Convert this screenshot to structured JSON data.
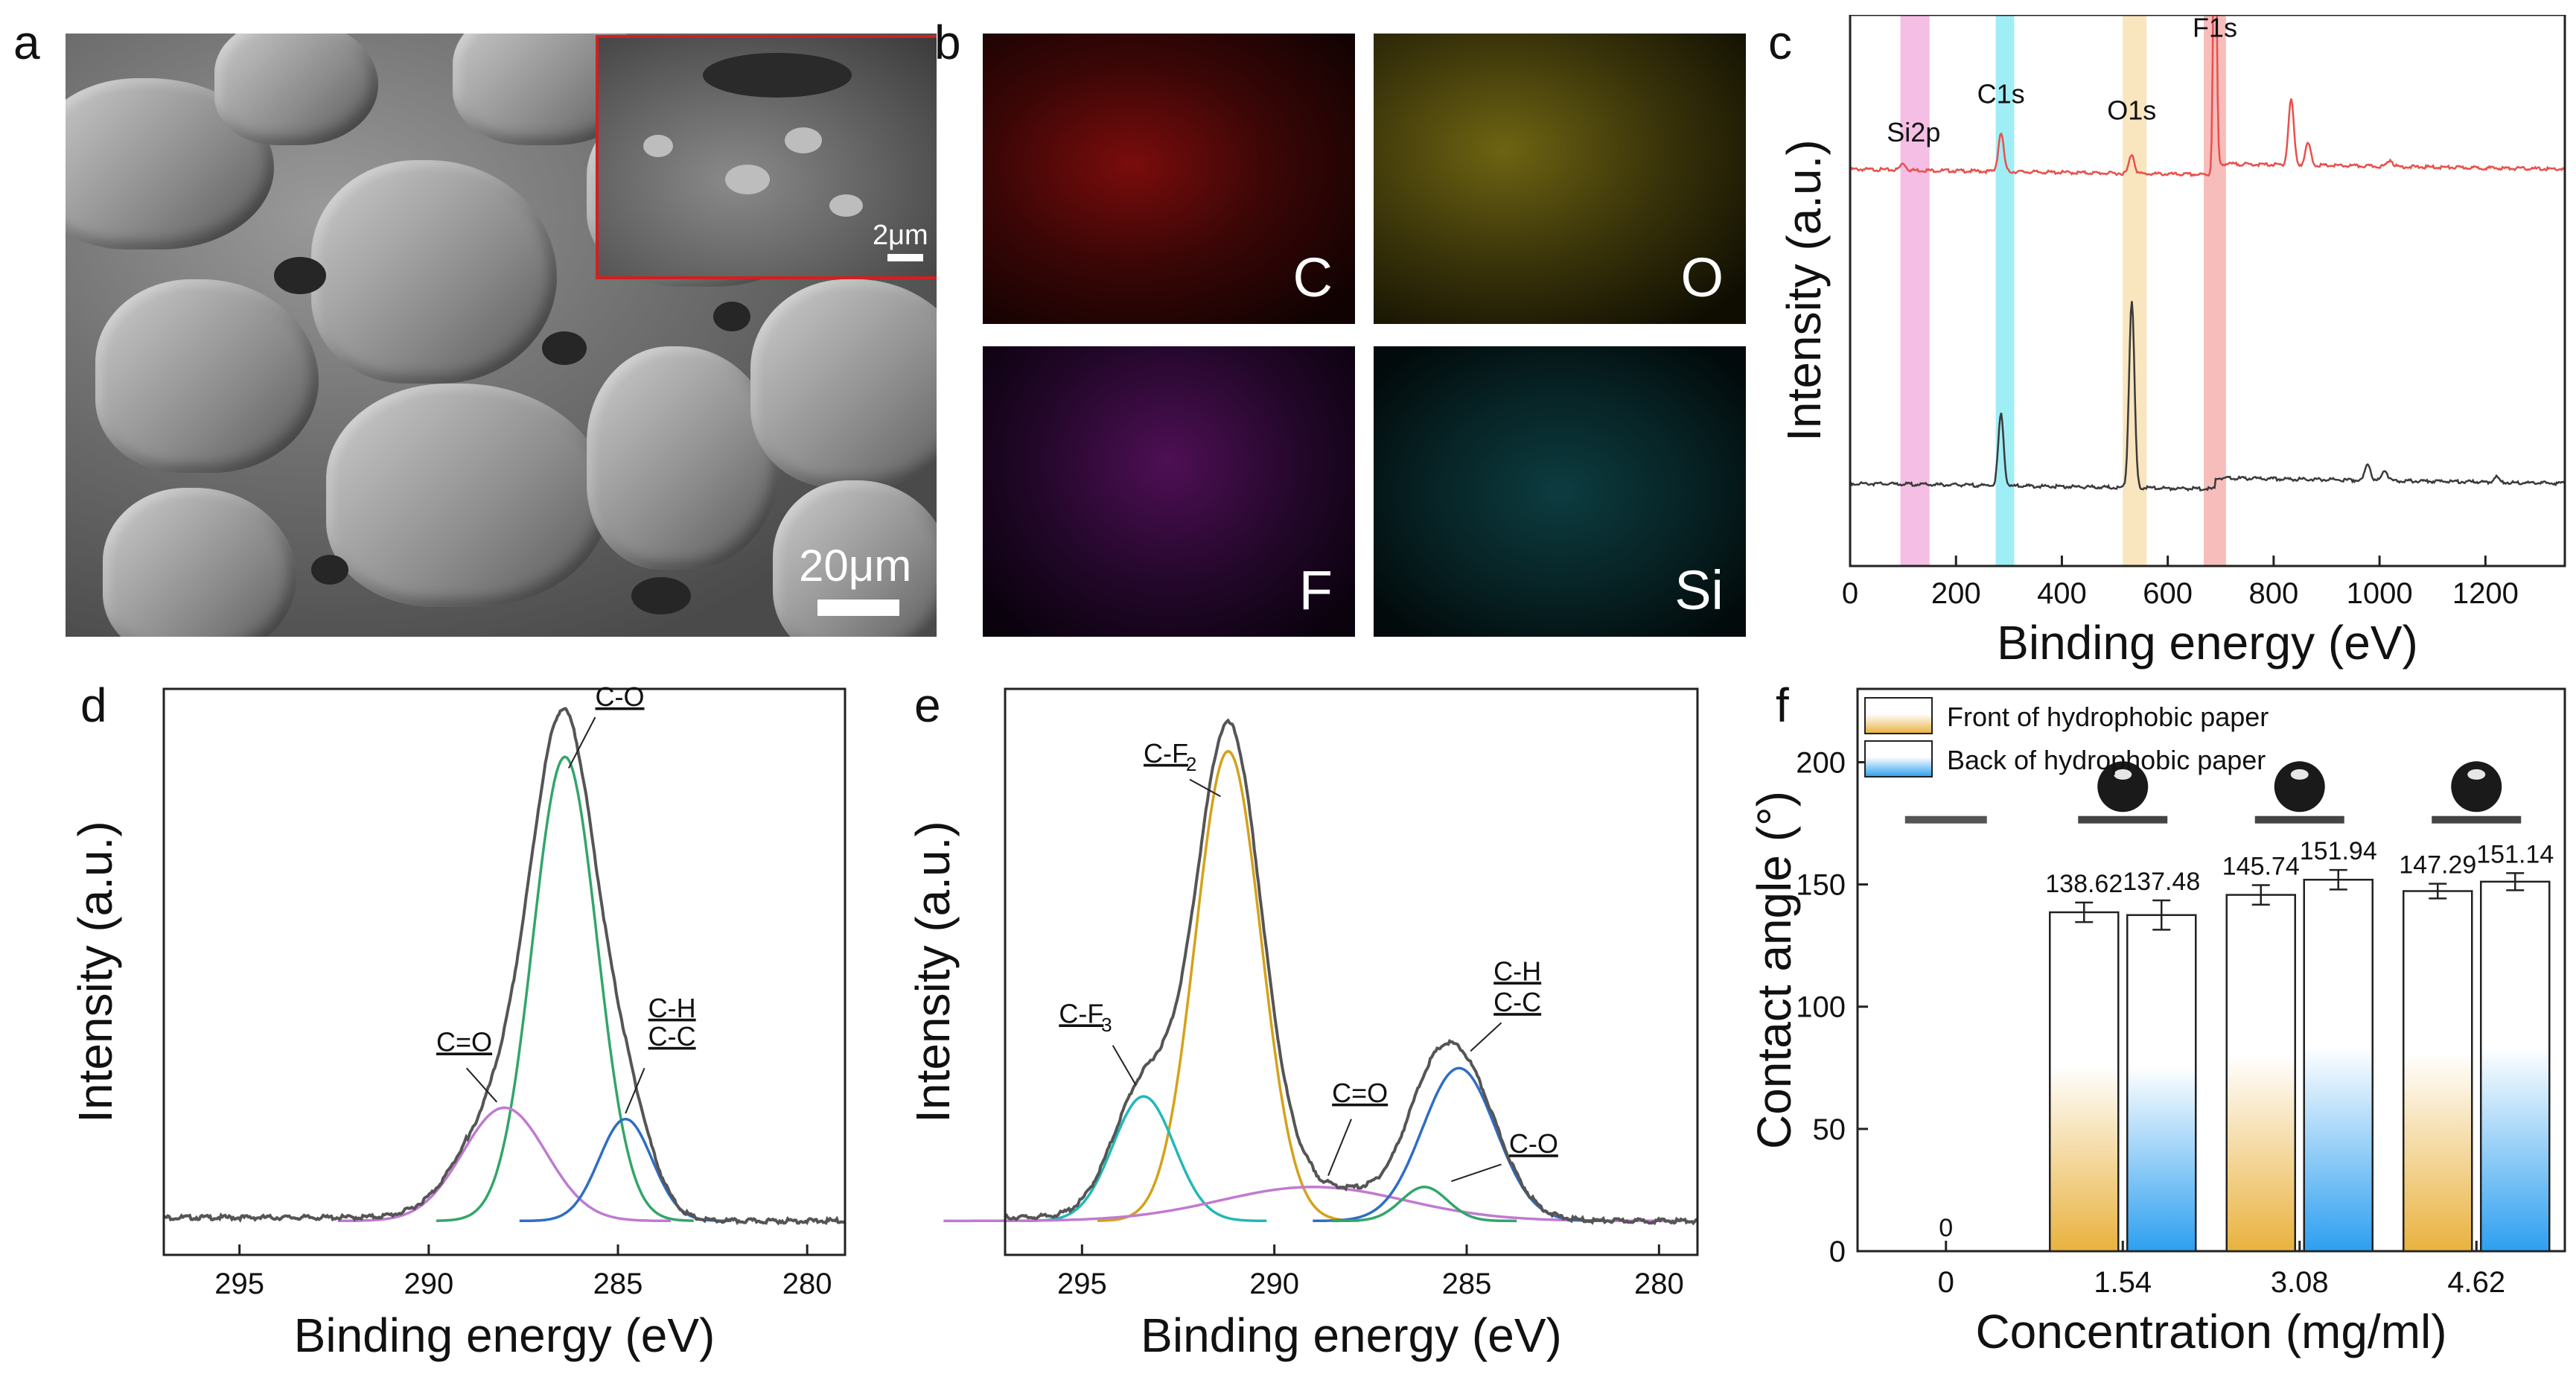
{
  "panels": {
    "a": "a",
    "b": "b",
    "c": "c",
    "d": "d",
    "e": "e",
    "f": "f"
  },
  "sem": {
    "scale_main": "20μm",
    "scale_inset": "2μm"
  },
  "eds": {
    "labels": [
      "C",
      "O",
      "F",
      "Si"
    ],
    "colors": [
      "#d01010",
      "#d4c21a",
      "#c02ac8",
      "#1fc8c8"
    ]
  },
  "colors": {
    "front_bar_top": "#ffffff",
    "front_bar_bottom": "#e9b23f",
    "back_bar_top": "#ffffff",
    "back_bar_bottom": "#2d9ff0",
    "survey_red": "#e8504c",
    "survey_black": "#3a3a3a",
    "envelope": "#555555"
  },
  "chart_data": [
    {
      "id": "c",
      "type": "line",
      "title": "",
      "xlabel": "Binding energy (eV)",
      "ylabel": "Intensity (a.u.)",
      "xlim": [
        0,
        1350
      ],
      "xticks": [
        0,
        200,
        400,
        600,
        800,
        1000,
        1200
      ],
      "bands": [
        {
          "x": [
            95,
            150
          ],
          "color": "#f2a8dc"
        },
        {
          "x": [
            275,
            310
          ],
          "color": "#7fe8f2"
        },
        {
          "x": [
            515,
            560
          ],
          "color": "#f7dca8"
        },
        {
          "x": [
            668,
            710
          ],
          "color": "#f4a7a4"
        }
      ],
      "annotations": [
        {
          "text": "Si2p",
          "x": 120
        },
        {
          "text": "C1s",
          "x": 285
        },
        {
          "text": "O1s",
          "x": 532
        },
        {
          "text": "F1s",
          "x": 689
        }
      ],
      "series": [
        {
          "name": "red",
          "color": "#e8504c",
          "baseline": 0.72,
          "peaks": [
            [
              100,
              0.012
            ],
            [
              285,
              0.07
            ],
            [
              532,
              0.035
            ],
            [
              689,
              0.58
            ],
            [
              833,
              0.12
            ],
            [
              865,
              0.04
            ],
            [
              1020,
              0.012
            ]
          ]
        },
        {
          "name": "black",
          "color": "#3a3a3a",
          "baseline": 0.15,
          "peaks": [
            [
              285,
              0.13
            ],
            [
              532,
              0.34
            ],
            [
              978,
              0.03
            ],
            [
              1010,
              0.02
            ],
            [
              1220,
              0.01
            ]
          ]
        }
      ]
    },
    {
      "id": "d",
      "type": "line",
      "title": "",
      "xlabel": "Binding energy (eV)",
      "ylabel": "Intensity (a.u.)",
      "xlim": [
        297,
        279
      ],
      "xticks": [
        295,
        290,
        285,
        280
      ],
      "components": [
        {
          "label": "C-O",
          "center": 286.4,
          "height": 0.82,
          "width": 0.85,
          "color": "#33a56a"
        },
        {
          "label": "C=O",
          "center": 288.0,
          "height": 0.2,
          "width": 1.1,
          "color": "#c07ad0"
        },
        {
          "label": "C-H / C-C",
          "center": 284.8,
          "height": 0.18,
          "width": 0.7,
          "color": "#2f6dc4"
        }
      ],
      "labels": [
        "C-O",
        "C=O",
        "C-H",
        "C-C"
      ]
    },
    {
      "id": "e",
      "type": "line",
      "title": "",
      "xlabel": "Binding energy (eV)",
      "ylabel": "Intensity (a.u.)",
      "xlim": [
        297,
        279
      ],
      "xticks": [
        295,
        290,
        285,
        280
      ],
      "components": [
        {
          "label": "C-F2",
          "center": 291.2,
          "height": 0.83,
          "width": 0.85,
          "color": "#d4a21a"
        },
        {
          "label": "C-F3",
          "center": 293.4,
          "height": 0.22,
          "width": 0.8,
          "color": "#22b8b8"
        },
        {
          "label": "C=O",
          "center": 289.0,
          "height": 0.06,
          "width": 2.4,
          "color": "#c07ad0"
        },
        {
          "label": "C-H / C-C",
          "center": 285.2,
          "height": 0.27,
          "width": 0.95,
          "color": "#2f6dc4"
        },
        {
          "label": "C-O",
          "center": 286.1,
          "height": 0.06,
          "width": 0.6,
          "color": "#33a56a"
        }
      ],
      "labels": [
        "C-F",
        "2",
        "C-F",
        "3",
        "C=O",
        "C-H",
        "C-C",
        "C-O"
      ]
    },
    {
      "id": "f",
      "type": "bar",
      "title": "",
      "xlabel": "Concentration (mg/ml)",
      "ylabel": "Contact angle (°)",
      "ylim": [
        0,
        230
      ],
      "yticks": [
        0,
        50,
        100,
        150,
        200
      ],
      "categories": [
        "0",
        "1.54",
        "3.08",
        "4.62"
      ],
      "series": [
        {
          "name": "Front of hydrophobic paper",
          "values": [
            0,
            138.62,
            145.74,
            147.29
          ],
          "errors": [
            0,
            4,
            4,
            3
          ]
        },
        {
          "name": "Back of hydrophobic paper",
          "values": [
            null,
            137.48,
            151.94,
            151.14
          ],
          "errors": [
            0,
            6,
            4,
            3.5
          ]
        }
      ],
      "value_labels": [
        "0",
        "138.62",
        "137.48",
        "145.74",
        "151.94",
        "147.29",
        "151.14"
      ],
      "legend": "top-left"
    }
  ]
}
